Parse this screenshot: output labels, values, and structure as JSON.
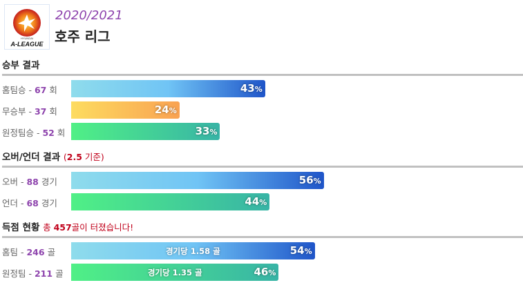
{
  "header": {
    "season": "2020/2021",
    "league": "호주 리그",
    "logo_text": "A-LEAGUE",
    "logo_sponsor": "HYUNDAI"
  },
  "colors": {
    "season": "#8e44ad",
    "count": "#8e44ad",
    "note": "#c0001a"
  },
  "results": {
    "title": "승부 결과",
    "rows": [
      {
        "label": "홈팀승",
        "count": "67",
        "unit": "회",
        "pct": 43,
        "pct_text": "43",
        "color": "blue"
      },
      {
        "label": "무승부",
        "count": "37",
        "unit": "회",
        "pct": 24,
        "pct_text": "24",
        "color": "orange"
      },
      {
        "label": "원정팀승",
        "count": "52",
        "unit": "회",
        "pct": 33,
        "pct_text": "33",
        "color": "green"
      }
    ]
  },
  "overunder": {
    "title": "오버/언더 결과",
    "note_open": "(",
    "note_value": "2.5",
    "note_text": " 기준)",
    "rows": [
      {
        "label": "오버",
        "count": "88",
        "unit": "경기",
        "pct": 56,
        "pct_text": "56",
        "color": "blue"
      },
      {
        "label": "언더",
        "count": "68",
        "unit": "경기",
        "pct": 44,
        "pct_text": "44",
        "color": "green"
      }
    ]
  },
  "goals": {
    "title": "득점 현황",
    "note_pre": "총 ",
    "note_value": "457",
    "note_post": "골이 터졌습니다!",
    "rows": [
      {
        "label": "홈팀",
        "count": "246",
        "unit": "골",
        "pct": 54,
        "pct_text": "54",
        "per_game": "경기당 1.58 골",
        "color": "blue"
      },
      {
        "label": "원정팀",
        "count": "211",
        "unit": "골",
        "pct": 46,
        "pct_text": "46",
        "per_game": "경기당 1.35 골",
        "color": "green"
      }
    ]
  },
  "pct_symbol": "%"
}
